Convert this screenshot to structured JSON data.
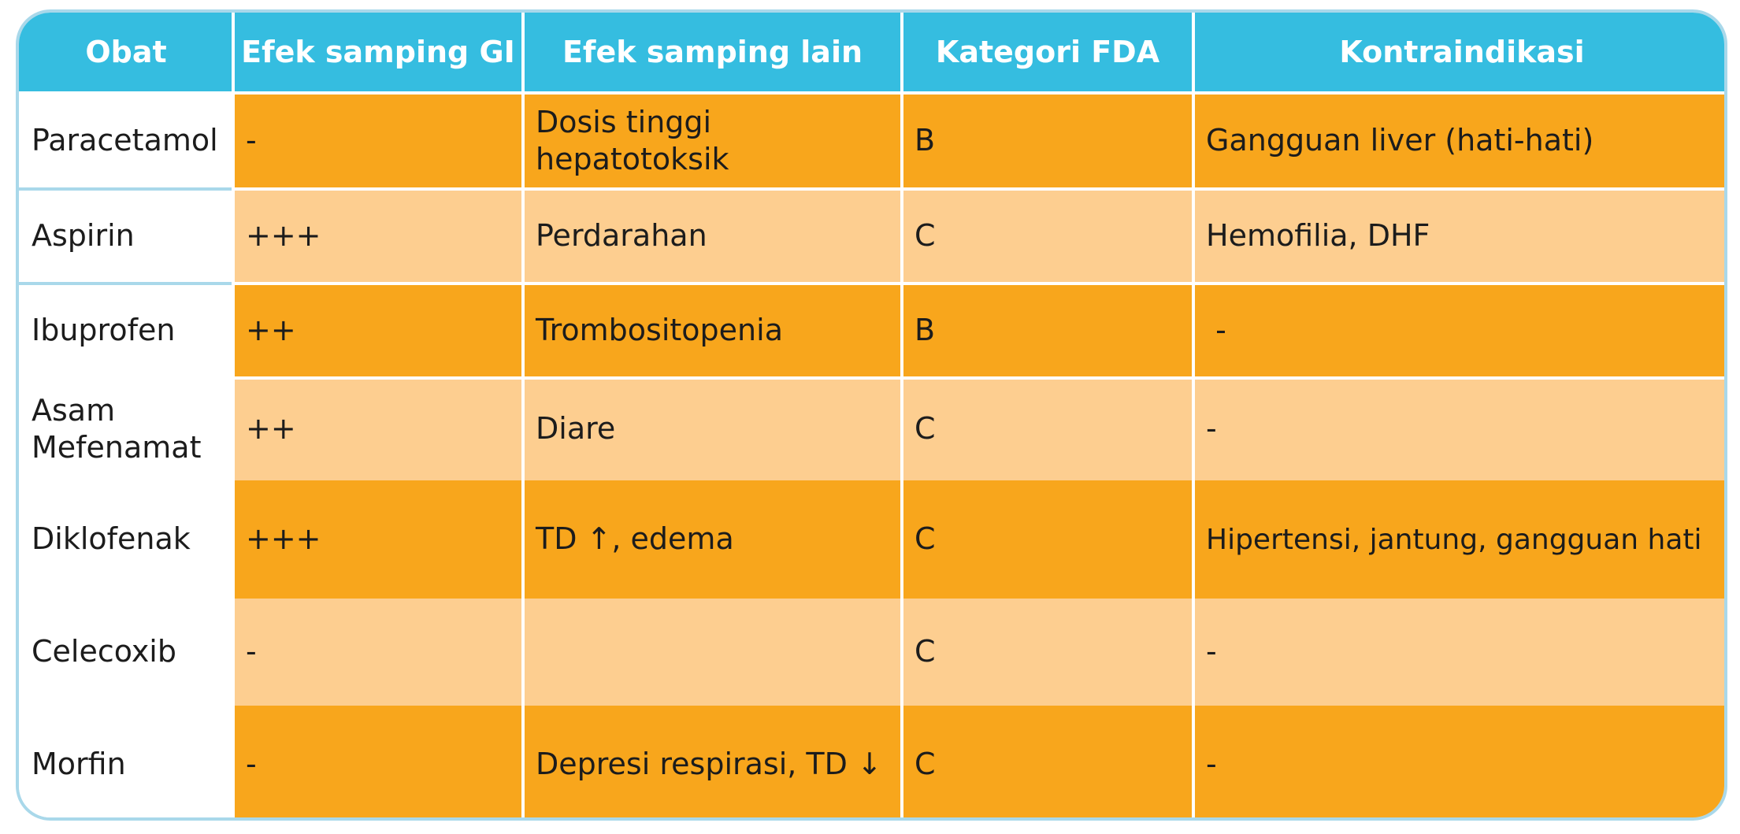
{
  "headers": [
    "Obat",
    "Efek samping GI",
    "Efek samping lain",
    "Kategori FDA",
    "Kontraindikasi"
  ],
  "rows": [
    {
      "obat": "Paracetamol",
      "gi": "-",
      "lain": "Dosis tinggi hepatotoksik",
      "fda": "B",
      "kontra": "Gangguan liver (hati-hati)"
    },
    {
      "obat": "Aspirin",
      "gi": "+++",
      "lain": "Perdarahan",
      "fda": "C",
      "kontra": "Hemofilia, DHF"
    },
    {
      "obat": "Ibuprofen",
      "gi": "++",
      "lain": "Trombositopenia",
      "fda": "B",
      "kontra": " -"
    },
    {
      "obat": "Asam Mefenamat",
      "gi": "++",
      "lain": "Diare",
      "fda": "C",
      "kontra": "-"
    },
    {
      "obat": "Diklofenak",
      "gi": "+++",
      "lain": "TD ↑, edema",
      "fda": "C",
      "kontra": "Hipertensi, jantung, gangguan hati"
    },
    {
      "obat": "Celecoxib",
      "gi": "-",
      "lain": "",
      "fda": "C",
      "kontra": "-"
    },
    {
      "obat": "Morfin",
      "gi": "-",
      "lain": "Depresi respirasi, TD ↓",
      "fda": "C",
      "kontra": "-"
    }
  ],
  "colors": {
    "header": "#35bde0",
    "dark_row": "#f8a61c",
    "light_row": "#fdce90",
    "border": "#a9d8ea"
  }
}
